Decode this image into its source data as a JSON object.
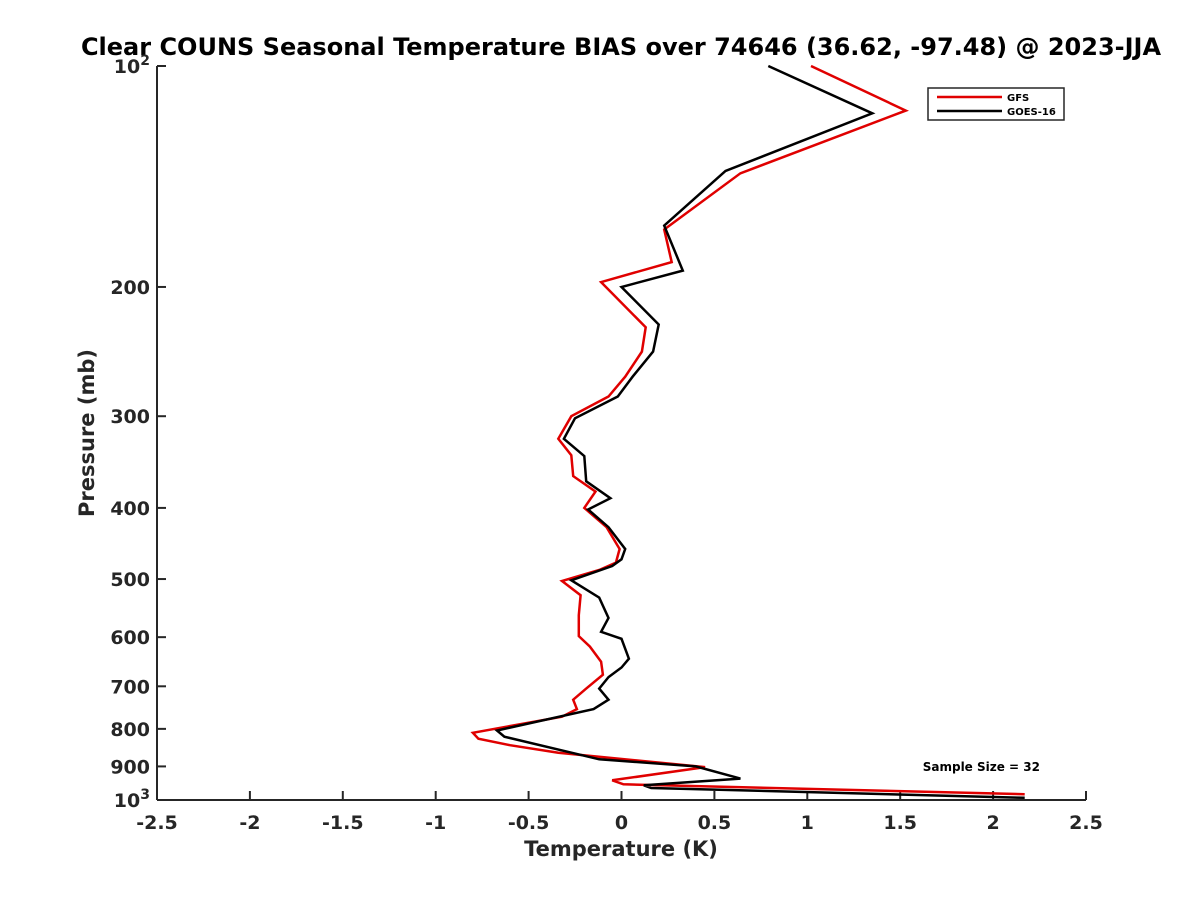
{
  "chart_data": {
    "type": "line",
    "title": "Clear COUNS Seasonal Temperature BIAS over 74646 (36.62, -97.48) @ 2023-JJA",
    "xlabel": "Temperature (K)",
    "ylabel": "Pressure (mb)",
    "xlim": [
      -2.5,
      2.5
    ],
    "ylim": [
      100,
      1000
    ],
    "y_scale": "log",
    "y_reversed": true,
    "grid": false,
    "legend_position": "top-right",
    "x_ticks": [
      "-2.5",
      "-2",
      "-1.5",
      "-1",
      "-0.5",
      "0",
      "0.5",
      "1",
      "1.5",
      "2",
      "2.5"
    ],
    "x_tick_values": [
      -2.5,
      -2,
      -1.5,
      -1,
      -0.5,
      0,
      0.5,
      1,
      1.5,
      2,
      2.5
    ],
    "y_ticks": [
      {
        "value": 100,
        "base": "10",
        "exp": "2"
      },
      {
        "value": 200,
        "label": "200"
      },
      {
        "value": 300,
        "label": "300"
      },
      {
        "value": 400,
        "label": "400"
      },
      {
        "value": 500,
        "label": "500"
      },
      {
        "value": 600,
        "label": "600"
      },
      {
        "value": 700,
        "label": "700"
      },
      {
        "value": 800,
        "label": "800"
      },
      {
        "value": 900,
        "label": "900"
      },
      {
        "value": 1000,
        "base": "10",
        "exp": "3"
      }
    ],
    "series": [
      {
        "name": "GFS",
        "color": "#e00000",
        "points": [
          [
            1.02,
            100
          ],
          [
            1.53,
            115
          ],
          [
            0.64,
            140
          ],
          [
            0.23,
            167
          ],
          [
            0.27,
            185
          ],
          [
            -0.11,
            197
          ],
          [
            0.13,
            227
          ],
          [
            0.11,
            245
          ],
          [
            0.02,
            265
          ],
          [
            -0.07,
            282
          ],
          [
            -0.27,
            300
          ],
          [
            -0.34,
            322
          ],
          [
            -0.27,
            339
          ],
          [
            -0.26,
            362
          ],
          [
            -0.14,
            380
          ],
          [
            -0.2,
            400
          ],
          [
            -0.08,
            425
          ],
          [
            -0.01,
            455
          ],
          [
            -0.03,
            475
          ],
          [
            -0.12,
            486
          ],
          [
            -0.32,
            503
          ],
          [
            -0.22,
            526
          ],
          [
            -0.23,
            560
          ],
          [
            -0.23,
            598
          ],
          [
            -0.17,
            618
          ],
          [
            -0.11,
            648
          ],
          [
            -0.1,
            675
          ],
          [
            -0.19,
            705
          ],
          [
            -0.26,
            730
          ],
          [
            -0.24,
            752
          ],
          [
            -0.32,
            770
          ],
          [
            -0.8,
            810
          ],
          [
            -0.77,
            825
          ],
          [
            -0.6,
            842
          ],
          [
            -0.34,
            862
          ],
          [
            0.45,
            902
          ],
          [
            -0.05,
            940
          ],
          [
            0.01,
            952
          ],
          [
            2.17,
            982
          ]
        ]
      },
      {
        "name": "GOES-16",
        "color": "#000000",
        "points": [
          [
            0.79,
            100
          ],
          [
            1.35,
            116
          ],
          [
            0.56,
            139
          ],
          [
            0.23,
            165
          ],
          [
            0.33,
            190
          ],
          [
            0.0,
            200
          ],
          [
            0.2,
            225
          ],
          [
            0.17,
            245
          ],
          [
            0.06,
            265
          ],
          [
            -0.02,
            282
          ],
          [
            -0.25,
            302
          ],
          [
            -0.31,
            322
          ],
          [
            -0.2,
            340
          ],
          [
            -0.19,
            368
          ],
          [
            -0.06,
            388
          ],
          [
            -0.18,
            402
          ],
          [
            -0.07,
            425
          ],
          [
            0.02,
            455
          ],
          [
            0.0,
            470
          ],
          [
            -0.05,
            480
          ],
          [
            -0.27,
            502
          ],
          [
            -0.12,
            530
          ],
          [
            -0.07,
            565
          ],
          [
            -0.11,
            590
          ],
          [
            0.0,
            603
          ],
          [
            0.04,
            642
          ],
          [
            0.0,
            660
          ],
          [
            -0.07,
            680
          ],
          [
            -0.12,
            705
          ],
          [
            -0.07,
            730
          ],
          [
            -0.15,
            752
          ],
          [
            -0.67,
            804
          ],
          [
            -0.63,
            820
          ],
          [
            -0.12,
            880
          ],
          [
            0.4,
            900
          ],
          [
            0.64,
            935
          ],
          [
            0.12,
            955
          ],
          [
            0.16,
            963
          ],
          [
            2.17,
            993
          ]
        ]
      }
    ],
    "annotations": [
      {
        "text": "Sample Size = 32",
        "position": "lower-right"
      }
    ]
  }
}
